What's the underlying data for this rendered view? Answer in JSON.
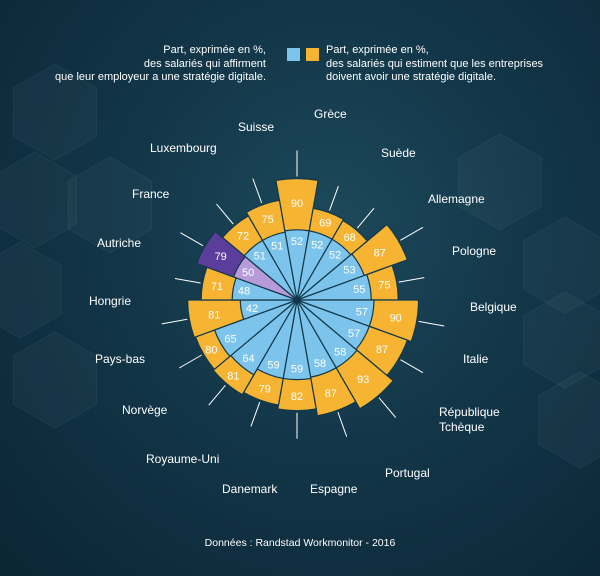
{
  "legend": {
    "left_text": "Part, exprimée en %,\ndes salariés qui affirment\nque leur employeur a une stratégie digitale.",
    "right_text": "Part, exprimée en %,\ndes salariés qui estiment que les entreprises\ndoivent avoir une stratégie digitale."
  },
  "source": "Données : Randstad Workmonitor - 2016",
  "colors": {
    "blue": "#7cc4ec",
    "orange": "#f6b432",
    "highlight_blue": "#b79bd8",
    "highlight_orange": "#5b3d9c",
    "stroke": "#12384a"
  },
  "chart_data": {
    "type": "radial-bar",
    "highlighted": "France",
    "categories": [
      "Grèce",
      "Suède",
      "Allemagne",
      "Pologne",
      "Belgique",
      "Italie",
      "République Tchèque",
      "Portugal",
      "Espagne",
      "Danemark",
      "Royaume-Uni",
      "Norvège",
      "Pays-bas",
      "Hongrie",
      "Autriche",
      "France",
      "Luxembourg",
      "Suisse"
    ],
    "series": [
      {
        "values": [
          52,
          52,
          52,
          53,
          55,
          57,
          57,
          58,
          58,
          59,
          59,
          64,
          65,
          42,
          48,
          50,
          51,
          51
        ]
      },
      {
        "values": [
          90,
          69,
          68,
          87,
          75,
          90,
          87,
          93,
          87,
          82,
          79,
          81,
          80,
          81,
          71,
          79,
          72,
          75
        ]
      }
    ]
  }
}
